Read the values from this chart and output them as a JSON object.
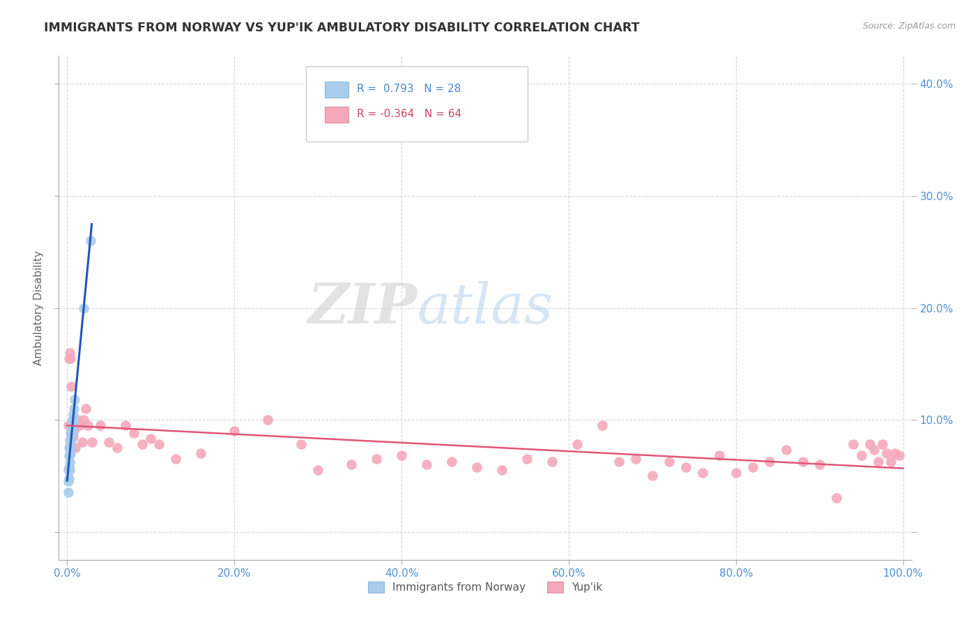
{
  "title": "IMMIGRANTS FROM NORWAY VS YUP'IK AMBULATORY DISABILITY CORRELATION CHART",
  "source": "Source: ZipAtlas.com",
  "ylabel": "Ambulatory Disability",
  "xlim": [
    -0.01,
    1.01
  ],
  "ylim": [
    -0.025,
    0.425
  ],
  "xticks": [
    0.0,
    0.2,
    0.4,
    0.6,
    0.8,
    1.0
  ],
  "xtick_labels": [
    "0.0%",
    "20.0%",
    "40.0%",
    "60.0%",
    "80.0%",
    "100.0%"
  ],
  "yticks": [
    0.0,
    0.1,
    0.2,
    0.3,
    0.4
  ],
  "ytick_labels": [
    "",
    "10.0%",
    "20.0%",
    "30.0%",
    "40.0%"
  ],
  "norway_R": 0.793,
  "norway_N": 28,
  "yupik_R": -0.364,
  "yupik_N": 64,
  "norway_color": "#A8CCEA",
  "yupik_color": "#F4A8BC",
  "norway_line_color": "#2255BB",
  "yupik_line_color": "#E05575",
  "watermark_zip": "ZIP",
  "watermark_atlas": "atlas",
  "norway_scatter_x": [
    0.001,
    0.001,
    0.001,
    0.002,
    0.002,
    0.002,
    0.002,
    0.003,
    0.003,
    0.003,
    0.003,
    0.003,
    0.004,
    0.004,
    0.004,
    0.004,
    0.005,
    0.005,
    0.005,
    0.006,
    0.006,
    0.006,
    0.007,
    0.007,
    0.008,
    0.009,
    0.02,
    0.028
  ],
  "norway_scatter_y": [
    0.055,
    0.045,
    0.035,
    0.075,
    0.068,
    0.058,
    0.048,
    0.082,
    0.076,
    0.069,
    0.062,
    0.055,
    0.088,
    0.082,
    0.076,
    0.07,
    0.094,
    0.088,
    0.082,
    0.1,
    0.094,
    0.088,
    0.105,
    0.099,
    0.11,
    0.118,
    0.2,
    0.26
  ],
  "yupik_scatter_x": [
    0.001,
    0.002,
    0.003,
    0.004,
    0.005,
    0.007,
    0.008,
    0.01,
    0.012,
    0.015,
    0.018,
    0.02,
    0.022,
    0.025,
    0.03,
    0.04,
    0.05,
    0.06,
    0.07,
    0.08,
    0.09,
    0.1,
    0.11,
    0.13,
    0.16,
    0.2,
    0.24,
    0.28,
    0.3,
    0.34,
    0.37,
    0.4,
    0.43,
    0.46,
    0.49,
    0.52,
    0.55,
    0.58,
    0.61,
    0.64,
    0.66,
    0.68,
    0.7,
    0.72,
    0.74,
    0.76,
    0.78,
    0.8,
    0.82,
    0.84,
    0.86,
    0.88,
    0.9,
    0.92,
    0.94,
    0.95,
    0.96,
    0.965,
    0.97,
    0.975,
    0.98,
    0.985,
    0.99,
    0.995
  ],
  "yupik_scatter_y": [
    0.095,
    0.155,
    0.16,
    0.155,
    0.13,
    0.085,
    0.09,
    0.075,
    0.1,
    0.095,
    0.08,
    0.1,
    0.11,
    0.095,
    0.08,
    0.095,
    0.08,
    0.075,
    0.095,
    0.088,
    0.078,
    0.083,
    0.078,
    0.065,
    0.07,
    0.09,
    0.1,
    0.078,
    0.055,
    0.06,
    0.065,
    0.068,
    0.06,
    0.063,
    0.058,
    0.055,
    0.065,
    0.063,
    0.078,
    0.095,
    0.063,
    0.065,
    0.05,
    0.063,
    0.058,
    0.053,
    0.068,
    0.053,
    0.058,
    0.063,
    0.073,
    0.063,
    0.06,
    0.03,
    0.078,
    0.068,
    0.078,
    0.073,
    0.063,
    0.078,
    0.07,
    0.063,
    0.07,
    0.068
  ]
}
